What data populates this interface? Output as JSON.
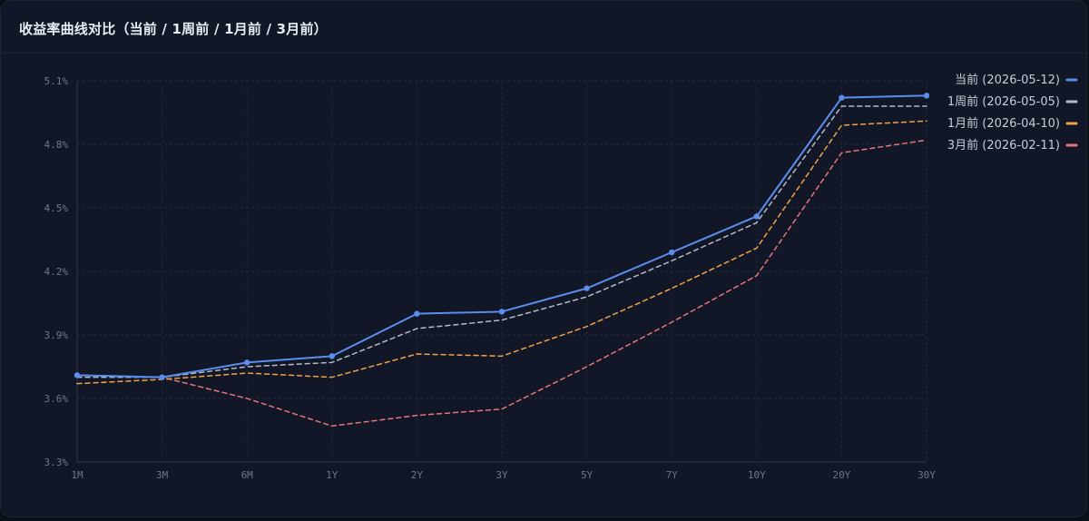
{
  "header": {
    "title": "收益率曲线对比（当前 / 1周前 / 1月前 / 3月前）"
  },
  "chart_data": {
    "type": "line",
    "title": "收益率曲线对比（当前 / 1周前 / 1月前 / 3月前）",
    "xlabel": "",
    "ylabel": "",
    "categories": [
      "1M",
      "3M",
      "6M",
      "1Y",
      "2Y",
      "3Y",
      "5Y",
      "7Y",
      "10Y",
      "20Y",
      "30Y"
    ],
    "ylim": [
      3.3,
      5.1
    ],
    "yticks": [
      3.3,
      3.6,
      3.9,
      4.2,
      4.5,
      4.8,
      5.1
    ],
    "ytick_labels": [
      "3.3%",
      "3.6%",
      "3.9%",
      "4.2%",
      "4.5%",
      "4.8%",
      "5.1%"
    ],
    "grid": true,
    "legend_position": "top-right",
    "series": [
      {
        "name": "当前 (2026-05-12)",
        "color": "#5b8def",
        "style": "solid",
        "markers": true,
        "values": [
          3.71,
          3.7,
          3.77,
          3.8,
          4.0,
          4.01,
          4.12,
          4.29,
          4.46,
          5.02,
          5.03
        ]
      },
      {
        "name": "1周前 (2026-05-05)",
        "color": "#b4bac6",
        "style": "dashed",
        "markers": false,
        "values": [
          3.7,
          3.7,
          3.75,
          3.77,
          3.93,
          3.97,
          4.08,
          4.25,
          4.43,
          4.98,
          4.98
        ]
      },
      {
        "name": "1月前 (2026-04-10)",
        "color": "#f0a24a",
        "style": "dashed",
        "markers": false,
        "values": [
          3.67,
          3.69,
          3.72,
          3.7,
          3.81,
          3.8,
          3.94,
          4.12,
          4.31,
          4.89,
          4.91
        ]
      },
      {
        "name": "3月前 (2026-02-11)",
        "color": "#e8737e",
        "style": "dashed",
        "markers": false,
        "values": [
          3.71,
          3.7,
          3.6,
          3.47,
          3.52,
          3.55,
          3.75,
          3.96,
          4.18,
          4.76,
          4.82
        ]
      }
    ]
  }
}
